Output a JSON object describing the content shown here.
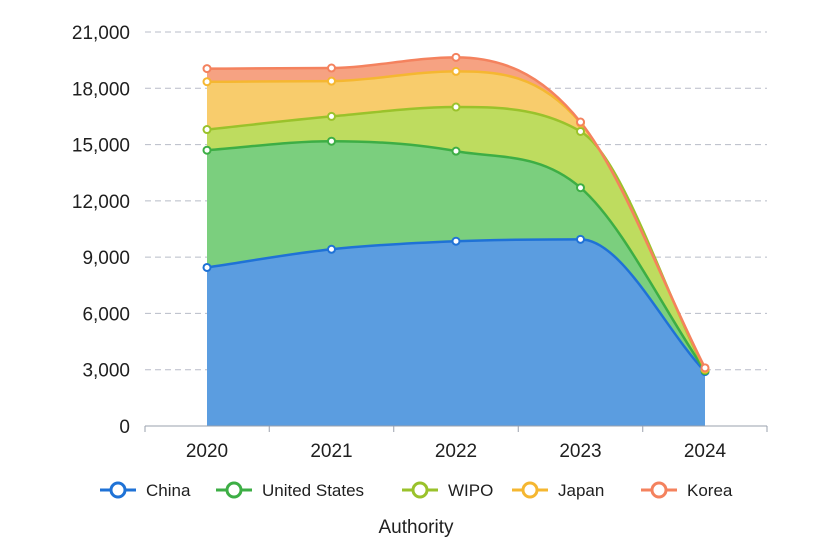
{
  "chart_data": {
    "type": "area",
    "stacked": true,
    "title": "",
    "xlabel": "Authority",
    "ylabel": "",
    "x": [
      "2020",
      "2021",
      "2022",
      "2023",
      "2024"
    ],
    "ylim": [
      0,
      21000
    ],
    "yticks": [
      0,
      3000,
      6000,
      9000,
      12000,
      15000,
      18000,
      21000
    ],
    "ytick_labels": [
      "0",
      "3,000",
      "6,000",
      "9,000",
      "12,000",
      "15,000",
      "18,000",
      "21,000"
    ],
    "grid": "horizontal dashed",
    "legend_position": "bottom",
    "series": [
      {
        "name": "China",
        "color": "#1f72d6",
        "fill": "#5b9de0",
        "values": [
          8450,
          9420,
          9850,
          9950,
          2900
        ]
      },
      {
        "name": "United States",
        "color": "#3dae45",
        "fill": "#7bcf7e",
        "values": [
          6250,
          5760,
          4800,
          2750,
          50
        ]
      },
      {
        "name": "WIPO",
        "color": "#9ac22b",
        "fill": "#bedc5f",
        "values": [
          1100,
          1320,
          2350,
          3000,
          50
        ]
      },
      {
        "name": "Japan",
        "color": "#f5b731",
        "fill": "#f8cc6c",
        "values": [
          2550,
          1880,
          1900,
          450,
          50
        ]
      },
      {
        "name": "Korea",
        "color": "#f4825e",
        "fill": "#f6a282",
        "values": [
          700,
          700,
          750,
          50,
          50
        ]
      }
    ]
  }
}
